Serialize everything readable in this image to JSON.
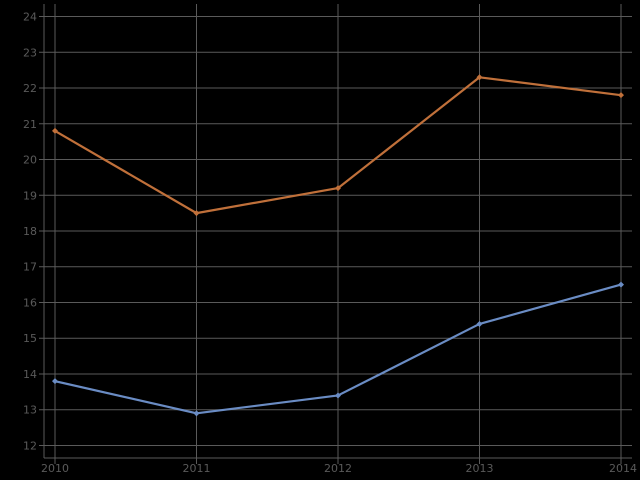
{
  "chart_data": {
    "type": "line",
    "title": "",
    "xlabel": "",
    "ylabel": "",
    "x": [
      "2010",
      "2011",
      "2012",
      "2013",
      "2014"
    ],
    "ylim": [
      11.65,
      24.35
    ],
    "y_ticks": [
      "12",
      "13",
      "14",
      "15",
      "16",
      "17",
      "18",
      "19",
      "20",
      "21",
      "22",
      "23",
      "24"
    ],
    "grid": true,
    "legend": "none",
    "background": "#000000",
    "grid_color": "#5a5a5a",
    "tick_label_color": "#5a5a5a",
    "series": [
      {
        "color": "#c0703a",
        "values": [
          20.8,
          18.5,
          19.2,
          22.3,
          21.8
        ]
      },
      {
        "color": "#6a8cc4",
        "values": [
          13.8,
          12.9,
          13.4,
          15.4,
          16.5
        ]
      }
    ]
  }
}
